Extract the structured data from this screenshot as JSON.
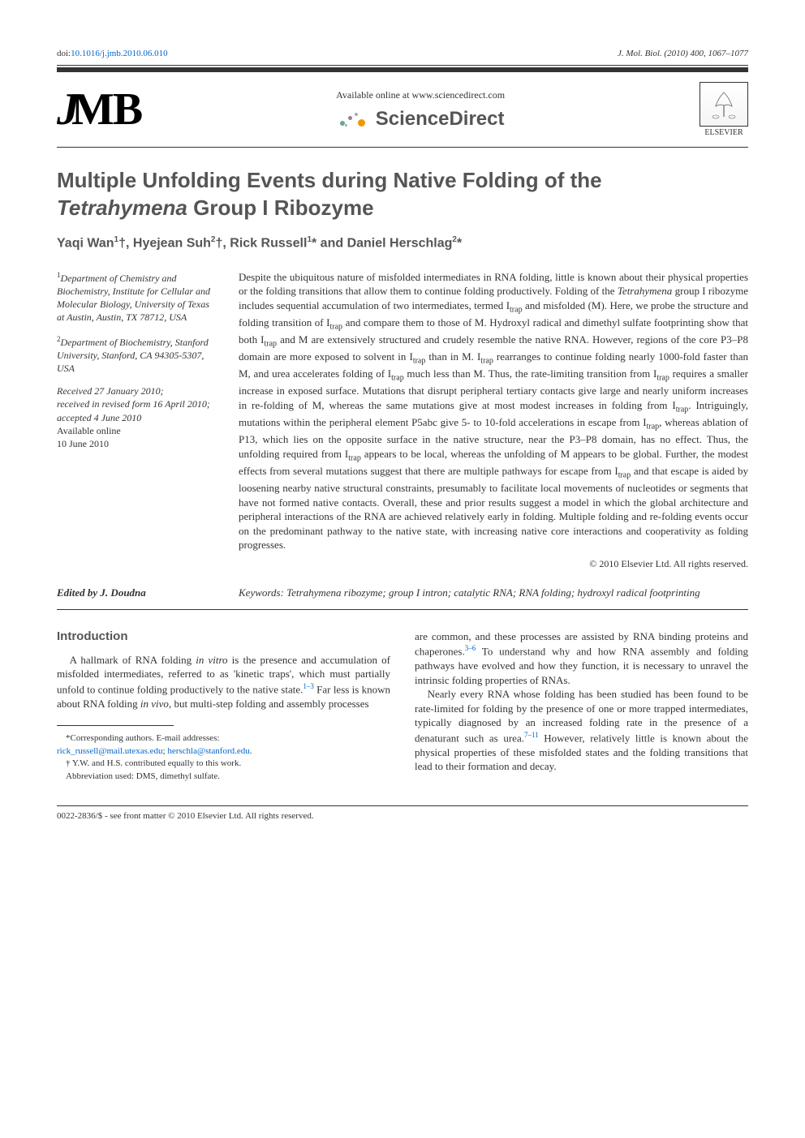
{
  "doi": {
    "prefix": "doi:",
    "value": "10.1016/j.jmb.2010.06.010"
  },
  "journal_ref": {
    "journal": "J. Mol. Biol.",
    "year": "(2010)",
    "volume_pages": "400, 1067–1077"
  },
  "header": {
    "jmb": "JMB",
    "available_online": "Available online at www.sciencedirect.com",
    "sciencedirect": "ScienceDirect",
    "elsevier": "ELSEVIER"
  },
  "title": {
    "line1": "Multiple Unfolding Events during Native Folding of the",
    "line2_italic": "Tetrahymena",
    "line2_rest": " Group I Ribozyme"
  },
  "authors_html": "Yaqi Wan<sup>1</sup>†, Hyejean Suh<sup>2</sup>†, Rick Russell<sup>1</sup>* and Daniel Herschlag<sup>2</sup>*",
  "affiliations": {
    "aff1_sup": "1",
    "aff1": "Department of Chemistry and Biochemistry, Institute for Cellular and Molecular Biology, University of Texas at Austin, Austin, TX 78712, USA",
    "aff2_sup": "2",
    "aff2": "Department of Biochemistry, Stanford University, Stanford, CA 94305-5307, USA"
  },
  "history": {
    "received": "Received 27 January 2010;",
    "revised": "received in revised form 16 April 2010;",
    "accepted": "accepted 4 June 2010",
    "available_label": "Available online",
    "available_date": "10 June 2010"
  },
  "abstract": "Despite the ubiquitous nature of misfolded intermediates in RNA folding, little is known about their physical properties or the folding transitions that allow them to continue folding productively. Folding of the Tetrahymena group I ribozyme includes sequential accumulation of two intermediates, termed Itrap and misfolded (M). Here, we probe the structure and folding transition of Itrap and compare them to those of M. Hydroxyl radical and dimethyl sulfate footprinting show that both Itrap and M are extensively structured and crudely resemble the native RNA. However, regions of the core P3–P8 domain are more exposed to solvent in Itrap than in M. Itrap rearranges to continue folding nearly 1000-fold faster than M, and urea accelerates folding of Itrap much less than M. Thus, the rate-limiting transition from Itrap requires a smaller increase in exposed surface. Mutations that disrupt peripheral tertiary contacts give large and nearly uniform increases in re-folding of M, whereas the same mutations give at most modest increases in folding from Itrap. Intriguingly, mutations within the peripheral element P5abc give 5- to 10-fold accelerations in escape from Itrap, whereas ablation of P13, which lies on the opposite surface in the native structure, near the P3–P8 domain, has no effect. Thus, the unfolding required from Itrap appears to be local, whereas the unfolding of M appears to be global. Further, the modest effects from several mutations suggest that there are multiple pathways for escape from Itrap and that escape is aided by loosening nearby native structural constraints, presumably to facilitate local movements of nucleotides or segments that have not formed native contacts. Overall, these and prior results suggest a model in which the global architecture and peripheral interactions of the RNA are achieved relatively early in folding. Multiple folding and re-folding events occur on the predominant pathway to the native state, with increasing native core interactions and cooperativity as folding progresses.",
  "copyright": "© 2010 Elsevier Ltd. All rights reserved.",
  "edited_by": "Edited by J. Doudna",
  "keywords": {
    "label": "Keywords:",
    "text": " Tetrahymena ribozyme; group I intron; catalytic RNA; RNA folding; hydroxyl radical footprinting"
  },
  "introduction": {
    "heading": "Introduction",
    "para1": "A hallmark of RNA folding in vitro is the presence and accumulation of misfolded intermediates, referred to as 'kinetic traps', which must partially unfold to continue folding productively to the native state.1–3 Far less is known about RNA folding in vivo, but multi-step folding and assembly processes",
    "para2": "are common, and these processes are assisted by RNA binding proteins and chaperones.3–6 To understand why and how RNA assembly and folding pathways have evolved and how they function, it is necessary to unravel the intrinsic folding properties of RNAs.",
    "para3": "Nearly every RNA whose folding has been studied has been found to be rate-limited for folding by the presence of one or more trapped intermediates, typically diagnosed by an increased folding rate in the presence of a denaturant such as urea.7–11 However, relatively little is known about the physical properties of these misfolded states and the folding transitions that lead to their formation and decay."
  },
  "footnotes": {
    "corresponding": "*Corresponding authors. E-mail addresses:",
    "email1": "rick_russell@mail.utexas.edu",
    "email2": "herschla@stanford.edu",
    "equal": "† Y.W. and H.S. contributed equally to this work.",
    "abbrev": "Abbreviation used: DMS, dimethyl sulfate."
  },
  "footer": "0022-2836/$ - see front matter © 2010 Elsevier Ltd. All rights reserved.",
  "colors": {
    "link": "#0066cc",
    "heading_gray": "#555555",
    "body_text": "#333333"
  }
}
